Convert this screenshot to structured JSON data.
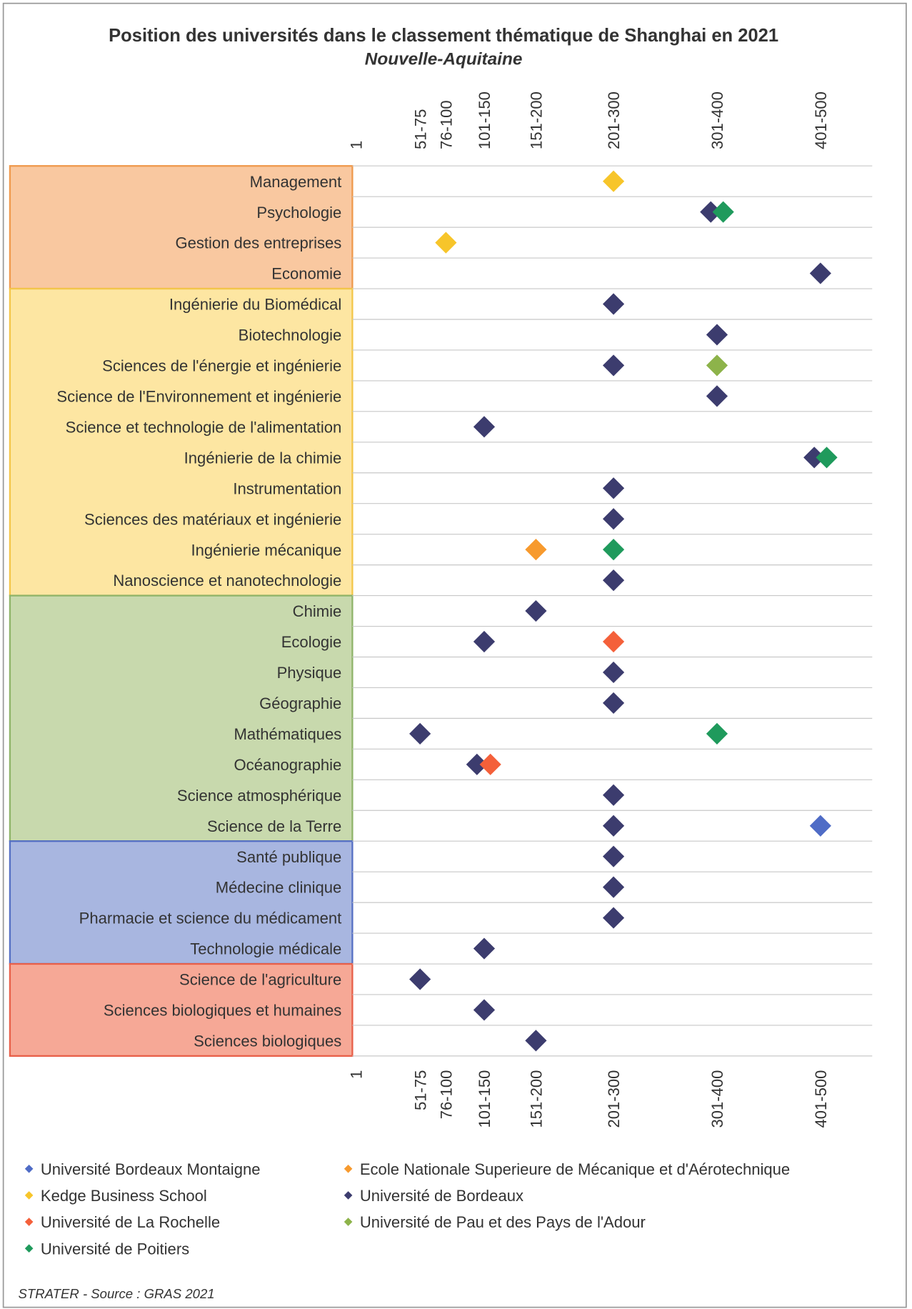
{
  "chart_data": {
    "type": "dot",
    "title": "Position des universités dans le classement thématique de Shanghai en 2021",
    "subtitle": "Nouvelle-Aquitaine",
    "source": "STRATER - Source : GRAS 2021",
    "categories": [
      "Management",
      "Psychologie",
      "Gestion des entreprises",
      "Economie",
      "Ingénierie du Biomédical",
      "Biotechnologie",
      "Sciences de l'énergie et ingénierie",
      "Science de l'Environnement et ingénierie",
      "Science et technologie de l'alimentation",
      "Ingénierie de la chimie",
      "Instrumentation",
      "Sciences des matériaux et ingénierie",
      "Ingénierie mécanique",
      "Nanoscience et nanotechnologie",
      "Chimie",
      "Ecologie",
      "Physique",
      "Géographie",
      "Mathématiques",
      "Océanographie",
      "Science atmosphérique",
      "Science de la Terre",
      "Santé publique",
      "Médecine clinique",
      "Pharmacie et science du médicament",
      "Technologie médicale",
      "Science de l'agriculture",
      "Sciences biologiques et humaines",
      "Sciences biologiques"
    ],
    "category_groups": [
      {
        "count": 4,
        "color": "#f9c8a0",
        "border": "#ef9a4e"
      },
      {
        "count": 10,
        "color": "#fde6a2",
        "border": "#f3c64a"
      },
      {
        "count": 8,
        "color": "#c8d9ad",
        "border": "#8fb46a"
      },
      {
        "count": 4,
        "color": "#a8b6e0",
        "border": "#5670c4"
      },
      {
        "count": 3,
        "color": "#f6a896",
        "border": "#e8604a"
      }
    ],
    "xlim": [
      0,
      500
    ],
    "xticks": [
      1,
      {
        "value": 63,
        "label": "51-75"
      },
      {
        "value": 88,
        "label": "76-100"
      },
      {
        "value": 125,
        "label": "101-150"
      },
      {
        "value": 175,
        "label": "151-200"
      },
      {
        "value": 250,
        "label": "201-300"
      },
      {
        "value": 350,
        "label": "301-400"
      },
      {
        "value": 450,
        "label": "401-500"
      }
    ],
    "grid": true,
    "series": [
      {
        "name": "Université Bordeaux Montaigne",
        "color": "#4f6cc6",
        "values": [
          null,
          null,
          null,
          null,
          null,
          null,
          null,
          null,
          null,
          null,
          null,
          null,
          null,
          null,
          null,
          null,
          null,
          null,
          null,
          null,
          null,
          450,
          null,
          null,
          null,
          null,
          null,
          null,
          null
        ]
      },
      {
        "name": "Ecole Nationale Superieure de Mécanique et d'Aérotechnique",
        "color": "#f79a2e",
        "values": [
          null,
          null,
          null,
          null,
          null,
          null,
          null,
          null,
          null,
          null,
          null,
          null,
          175,
          null,
          null,
          null,
          null,
          null,
          null,
          null,
          null,
          null,
          null,
          null,
          null,
          null,
          null,
          null,
          null
        ]
      },
      {
        "name": "Kedge Business School",
        "color": "#f7c52a",
        "values": [
          250,
          null,
          88,
          null,
          null,
          null,
          null,
          null,
          null,
          null,
          null,
          null,
          null,
          null,
          null,
          null,
          null,
          null,
          null,
          null,
          null,
          null,
          null,
          null,
          null,
          null,
          null,
          null,
          null
        ]
      },
      {
        "name": "Université de Bordeaux",
        "color": "#3c3c6e",
        "values": [
          null,
          344,
          null,
          450,
          250,
          350,
          250,
          350,
          125,
          444,
          250,
          250,
          null,
          250,
          175,
          125,
          250,
          250,
          63,
          118,
          250,
          250,
          250,
          250,
          250,
          125,
          63,
          125,
          175
        ]
      },
      {
        "name": "Université de La Rochelle",
        "color": "#f4603a",
        "values": [
          null,
          null,
          null,
          null,
          null,
          null,
          null,
          null,
          null,
          null,
          null,
          null,
          null,
          null,
          null,
          250,
          null,
          null,
          null,
          131,
          null,
          null,
          null,
          null,
          null,
          null,
          null,
          null,
          null
        ]
      },
      {
        "name": "Université de Pau et des Pays de l'Adour",
        "color": "#8db34a",
        "values": [
          null,
          null,
          null,
          null,
          null,
          null,
          350,
          null,
          null,
          null,
          null,
          null,
          null,
          null,
          null,
          null,
          null,
          null,
          null,
          null,
          null,
          null,
          null,
          null,
          null,
          null,
          null,
          null,
          null
        ]
      },
      {
        "name": "Université de Poitiers",
        "color": "#1f9a5c",
        "values": [
          null,
          356,
          null,
          null,
          null,
          null,
          null,
          null,
          null,
          456,
          null,
          null,
          250,
          null,
          null,
          null,
          null,
          null,
          350,
          null,
          null,
          null,
          null,
          null,
          null,
          null,
          null,
          null,
          null
        ]
      }
    ]
  }
}
